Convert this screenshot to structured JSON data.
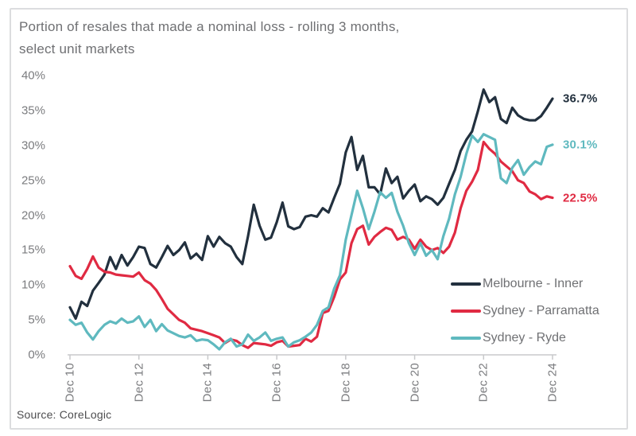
{
  "title": {
    "line1": "Portion of resales that made a nominal loss - rolling 3 months,",
    "line2": "select unit markets"
  },
  "source": "Source: CoreLogic",
  "colors": {
    "melbourne_inner": "#22303e",
    "sydney_parramatta": "#e02a42",
    "sydney_ryde": "#5fb9bf",
    "axis_line": "#c8c9cb",
    "text_grey": "#6f7073",
    "tick_grey": "#7b7c7f",
    "frame_border": "#dcdddf"
  },
  "chart_data": {
    "type": "line",
    "title": "Portion of resales that made a nominal loss - rolling 3 months, select unit markets",
    "xlabel": "",
    "ylabel": "",
    "ylim": [
      0,
      40
    ],
    "grid": false,
    "legend_position": "inside lower right",
    "y_tick_labels": [
      "40%",
      "35%",
      "30%",
      "25%",
      "20%",
      "15%",
      "10%",
      "5%",
      "0%"
    ],
    "y_tick_values": [
      40,
      35,
      30,
      25,
      20,
      15,
      10,
      5,
      0
    ],
    "x_tick_labels": [
      "Dec 10",
      "Dec 12",
      "Dec 14",
      "Dec 16",
      "Dec 18",
      "Dec 20",
      "Dec 22",
      "Dec 24"
    ],
    "x_range": "Dec 2010 to Dec 2024, values estimated at bi-monthly intervals",
    "series": [
      {
        "name": "Melbourne - Inner",
        "color": "#22303e",
        "end_label": "36.7%",
        "values": [
          6.8,
          5.2,
          7.6,
          7.0,
          9.2,
          10.3,
          11.5,
          14.0,
          12.3,
          14.3,
          12.8,
          14.0,
          15.5,
          15.3,
          13.0,
          12.5,
          14.0,
          15.6,
          14.3,
          15.0,
          16.1,
          13.8,
          14.5,
          13.6,
          17.0,
          15.5,
          16.9,
          16.0,
          15.5,
          14.0,
          13.0,
          17.0,
          21.5,
          18.5,
          16.5,
          16.8,
          19.0,
          21.8,
          18.4,
          18.0,
          18.3,
          19.8,
          20.0,
          19.8,
          21.0,
          20.4,
          22.5,
          24.5,
          29.0,
          31.2,
          26.5,
          28.5,
          24.0,
          24.0,
          23.0,
          26.7,
          24.6,
          25.5,
          22.4,
          23.5,
          24.4,
          22.0,
          22.7,
          22.3,
          21.5,
          22.5,
          24.5,
          26.5,
          29.2,
          30.8,
          32.0,
          34.9,
          38.0,
          36.2,
          36.9,
          33.8,
          33.2,
          35.4,
          34.3,
          33.8,
          33.6,
          33.6,
          34.2,
          35.4,
          36.7
        ]
      },
      {
        "name": "Sydney - Parramatta",
        "color": "#e02a42",
        "end_label": "22.5%",
        "values": [
          12.7,
          11.3,
          10.9,
          12.3,
          14.1,
          12.5,
          11.9,
          11.8,
          11.5,
          11.4,
          11.3,
          11.2,
          11.8,
          10.7,
          10.2,
          9.3,
          8.0,
          6.6,
          5.8,
          5.0,
          4.6,
          3.8,
          3.6,
          3.4,
          3.1,
          2.8,
          2.5,
          1.7,
          2.2,
          2.0,
          1.4,
          1.0,
          1.7,
          1.6,
          1.5,
          1.3,
          1.8,
          2.0,
          1.2,
          1.3,
          1.4,
          2.3,
          1.9,
          2.6,
          6.0,
          6.3,
          8.3,
          10.8,
          11.8,
          16.0,
          18.0,
          18.5,
          15.8,
          16.9,
          17.6,
          18.2,
          17.9,
          16.5,
          16.9,
          16.5,
          15.2,
          16.5,
          15.5,
          15.0,
          15.3,
          14.6,
          15.5,
          17.5,
          21.0,
          23.5,
          24.8,
          26.5,
          30.5,
          29.5,
          28.8,
          27.7,
          27.0,
          26.3,
          25.0,
          24.6,
          23.4,
          23.0,
          22.3,
          22.7,
          22.5
        ]
      },
      {
        "name": "Sydney - Ryde",
        "color": "#5fb9bf",
        "end_label": "30.1%",
        "values": [
          5.0,
          4.3,
          4.6,
          3.2,
          2.2,
          3.4,
          4.3,
          4.8,
          4.5,
          5.2,
          4.6,
          4.8,
          5.5,
          4.0,
          5.0,
          3.4,
          4.4,
          3.5,
          3.1,
          2.7,
          2.5,
          2.8,
          2.0,
          2.2,
          2.1,
          1.5,
          0.8,
          1.8,
          2.3,
          1.2,
          1.5,
          2.9,
          2.0,
          2.5,
          3.2,
          2.0,
          2.3,
          2.5,
          1.2,
          1.8,
          2.1,
          2.6,
          3.2,
          4.3,
          6.3,
          6.8,
          9.5,
          11.4,
          16.5,
          20.0,
          23.5,
          21.0,
          18.0,
          20.5,
          23.3,
          22.5,
          23.2,
          20.5,
          18.5,
          16.0,
          14.3,
          16.0,
          14.2,
          15.0,
          13.7,
          17.0,
          19.5,
          23.0,
          25.5,
          28.8,
          31.4,
          30.5,
          31.6,
          31.2,
          30.8,
          25.3,
          24.6,
          26.8,
          27.9,
          25.8,
          26.9,
          27.7,
          27.3,
          29.8,
          30.1
        ]
      }
    ]
  }
}
